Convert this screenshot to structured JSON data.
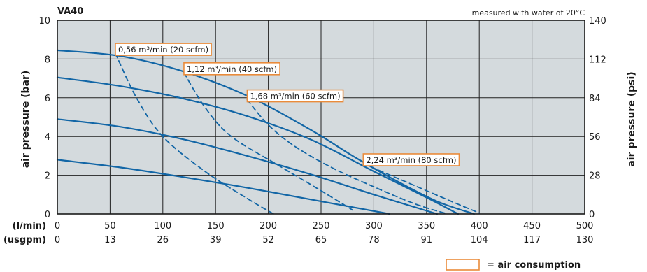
{
  "chart_data": {
    "type": "line",
    "title": "VA40",
    "note": "measured with water of 20°C",
    "xlabel_primary": "(l/min)",
    "xlabel_secondary": "(usgpm)",
    "ylabel_left": "air pressure (bar)",
    "ylabel_right": "air pressure (psi)",
    "xlim": [
      0,
      500
    ],
    "ylim": [
      0,
      10
    ],
    "x_ticks": [
      "0",
      "50",
      "100",
      "150",
      "200",
      "250",
      "300",
      "350",
      "400",
      "450",
      "500"
    ],
    "x_ticks_secondary": [
      "0",
      "13",
      "26",
      "39",
      "52",
      "65",
      "78",
      "91",
      "104",
      "117",
      "130"
    ],
    "y_ticks_left": [
      "0",
      "2",
      "4",
      "6",
      "8",
      "10"
    ],
    "y_ticks_right": [
      "0",
      "28",
      "56",
      "84",
      "112",
      "140"
    ],
    "grid": true,
    "colors": {
      "curve": "#1266a6",
      "plot_bg": "#d4dadd",
      "annotation_border": "#ea8b3a"
    },
    "series": [
      {
        "style": "solid",
        "x": [
          0,
          60,
          120,
          180,
          240,
          280,
          315
        ],
        "y": [
          2.8,
          2.4,
          1.9,
          1.35,
          0.75,
          0.35,
          0
        ]
      },
      {
        "style": "solid",
        "x": [
          0,
          60,
          120,
          180,
          240,
          300,
          360
        ],
        "y": [
          4.9,
          4.5,
          3.85,
          3.0,
          2.05,
          1.0,
          0
        ]
      },
      {
        "style": "solid",
        "x": [
          0,
          60,
          120,
          180,
          240,
          300,
          350,
          380
        ],
        "y": [
          7.05,
          6.6,
          5.95,
          5.05,
          3.85,
          2.2,
          0.85,
          0
        ]
      },
      {
        "style": "solid",
        "x": [
          0,
          60,
          120,
          180,
          240,
          280,
          320,
          360,
          395
        ],
        "y": [
          8.45,
          8.15,
          7.35,
          6.1,
          4.35,
          3.0,
          1.75,
          0.65,
          0
        ]
      },
      {
        "style": "dashed",
        "name": "0,56 m³/min (20 scfm)",
        "x": [
          55,
          75,
          100,
          140,
          180,
          205
        ],
        "y": [
          8.3,
          6.0,
          4.0,
          2.2,
          0.8,
          0
        ]
      },
      {
        "style": "dashed",
        "name": "1,12 m³/min (40 scfm)",
        "x": [
          120,
          140,
          165,
          210,
          250,
          280
        ],
        "y": [
          7.3,
          5.5,
          4.0,
          2.5,
          1.2,
          0.2
        ]
      },
      {
        "style": "dashed",
        "name": "1,68 m³/min (60 scfm)",
        "x": [
          180,
          200,
          225,
          260,
          300,
          340,
          370
        ],
        "y": [
          5.9,
          4.6,
          3.5,
          2.4,
          1.4,
          0.5,
          0
        ]
      },
      {
        "style": "dashed",
        "name": "2,24 m³/min (80 scfm)",
        "x": [
          290,
          320,
          350,
          380,
          400
        ],
        "y": [
          2.6,
          1.9,
          1.2,
          0.5,
          0.05
        ]
      }
    ],
    "annotations": [
      {
        "text": "0,56 m³/min (20 scfm)",
        "x": 55,
        "y": 8.3
      },
      {
        "text": "1,12 m³/min (40 scfm)",
        "x": 120,
        "y": 7.3
      },
      {
        "text": "1,68 m³/min (60 scfm)",
        "x": 180,
        "y": 5.9
      },
      {
        "text": "2,24 m³/min (80 scfm)",
        "x": 290,
        "y": 2.6
      }
    ],
    "legend": {
      "text": "= air consumption",
      "placement": "bottom-right"
    }
  }
}
